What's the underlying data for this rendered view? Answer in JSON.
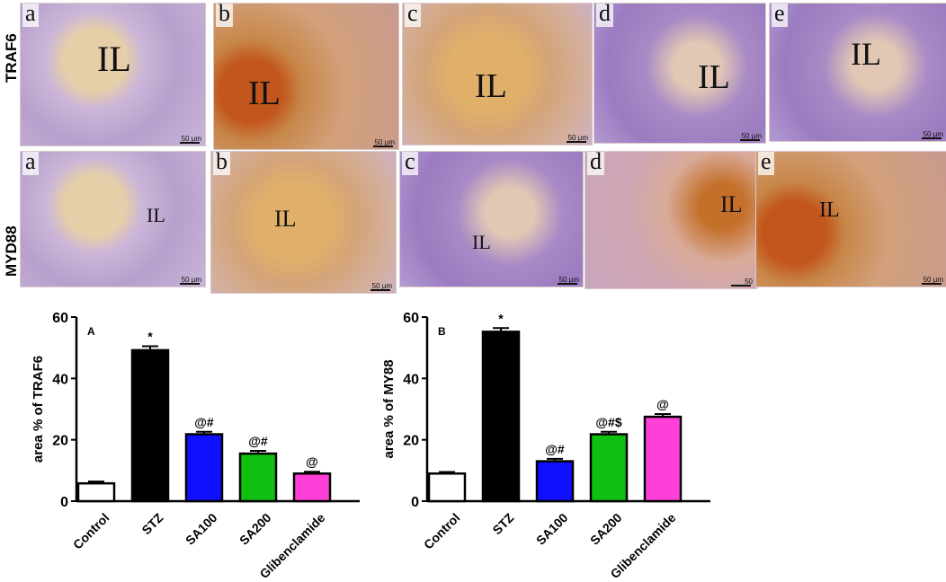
{
  "micrographs": {
    "rows": [
      {
        "label": "TRAF6",
        "panels": [
          {
            "letter": "a",
            "il": "IL",
            "scale": "50 µm",
            "tone": "light-purple"
          },
          {
            "letter": "b",
            "il": "IL",
            "scale": "50 µm",
            "tone": "brown"
          },
          {
            "letter": "c",
            "il": "IL",
            "scale": "50 µm",
            "tone": "tan"
          },
          {
            "letter": "d",
            "il": "IL",
            "scale": "50 µm",
            "tone": "purple"
          },
          {
            "letter": "e",
            "il": "IL",
            "scale": "50 µm",
            "tone": "purple"
          }
        ]
      },
      {
        "label": "MYD88",
        "panels": [
          {
            "letter": "a",
            "il": "IL",
            "scale": "50 µm",
            "tone": "light-purple"
          },
          {
            "letter": "b",
            "il": "IL",
            "scale": "50 µm",
            "tone": "tan"
          },
          {
            "letter": "c",
            "il": "IL",
            "scale": "50 µm",
            "tone": "purple"
          },
          {
            "letter": "d",
            "il": "IL",
            "scale": "50",
            "tone": "pink-brown"
          },
          {
            "letter": "e",
            "il": "IL",
            "scale": "50 µm",
            "tone": "brown"
          }
        ]
      }
    ]
  },
  "colors": {
    "Control": "#ffffff",
    "STZ": "#000000",
    "SA100": "#1010ff",
    "SA200": "#10c010",
    "Glibenclamide": "#ff40d8"
  },
  "chart_data": [
    {
      "type": "bar",
      "panel_label": "A",
      "ylabel": "area % of TRAF6",
      "categories": [
        "Control",
        "STZ",
        "SA100",
        "SA200",
        "Glibenclamide"
      ],
      "values": [
        5.8,
        49.2,
        21.8,
        15.5,
        9.0
      ],
      "errors": [
        0.6,
        1.3,
        0.8,
        0.9,
        0.6
      ],
      "annotations": [
        "",
        "*",
        "@#",
        "@#",
        "@"
      ],
      "ylim": [
        0,
        60
      ],
      "yticks": [
        0,
        20,
        40,
        60
      ]
    },
    {
      "type": "bar",
      "panel_label": "B",
      "ylabel": "area % of MY88",
      "categories": [
        "Control",
        "STZ",
        "SA100",
        "SA200",
        "Glibenclamide"
      ],
      "values": [
        9.0,
        55.2,
        13.0,
        21.8,
        27.5
      ],
      "errors": [
        0.5,
        1.2,
        0.8,
        0.8,
        0.9
      ],
      "annotations": [
        "",
        "*",
        "@#",
        "@#$",
        "@"
      ],
      "ylim": [
        0,
        60
      ],
      "yticks": [
        0,
        20,
        40,
        60
      ]
    }
  ]
}
